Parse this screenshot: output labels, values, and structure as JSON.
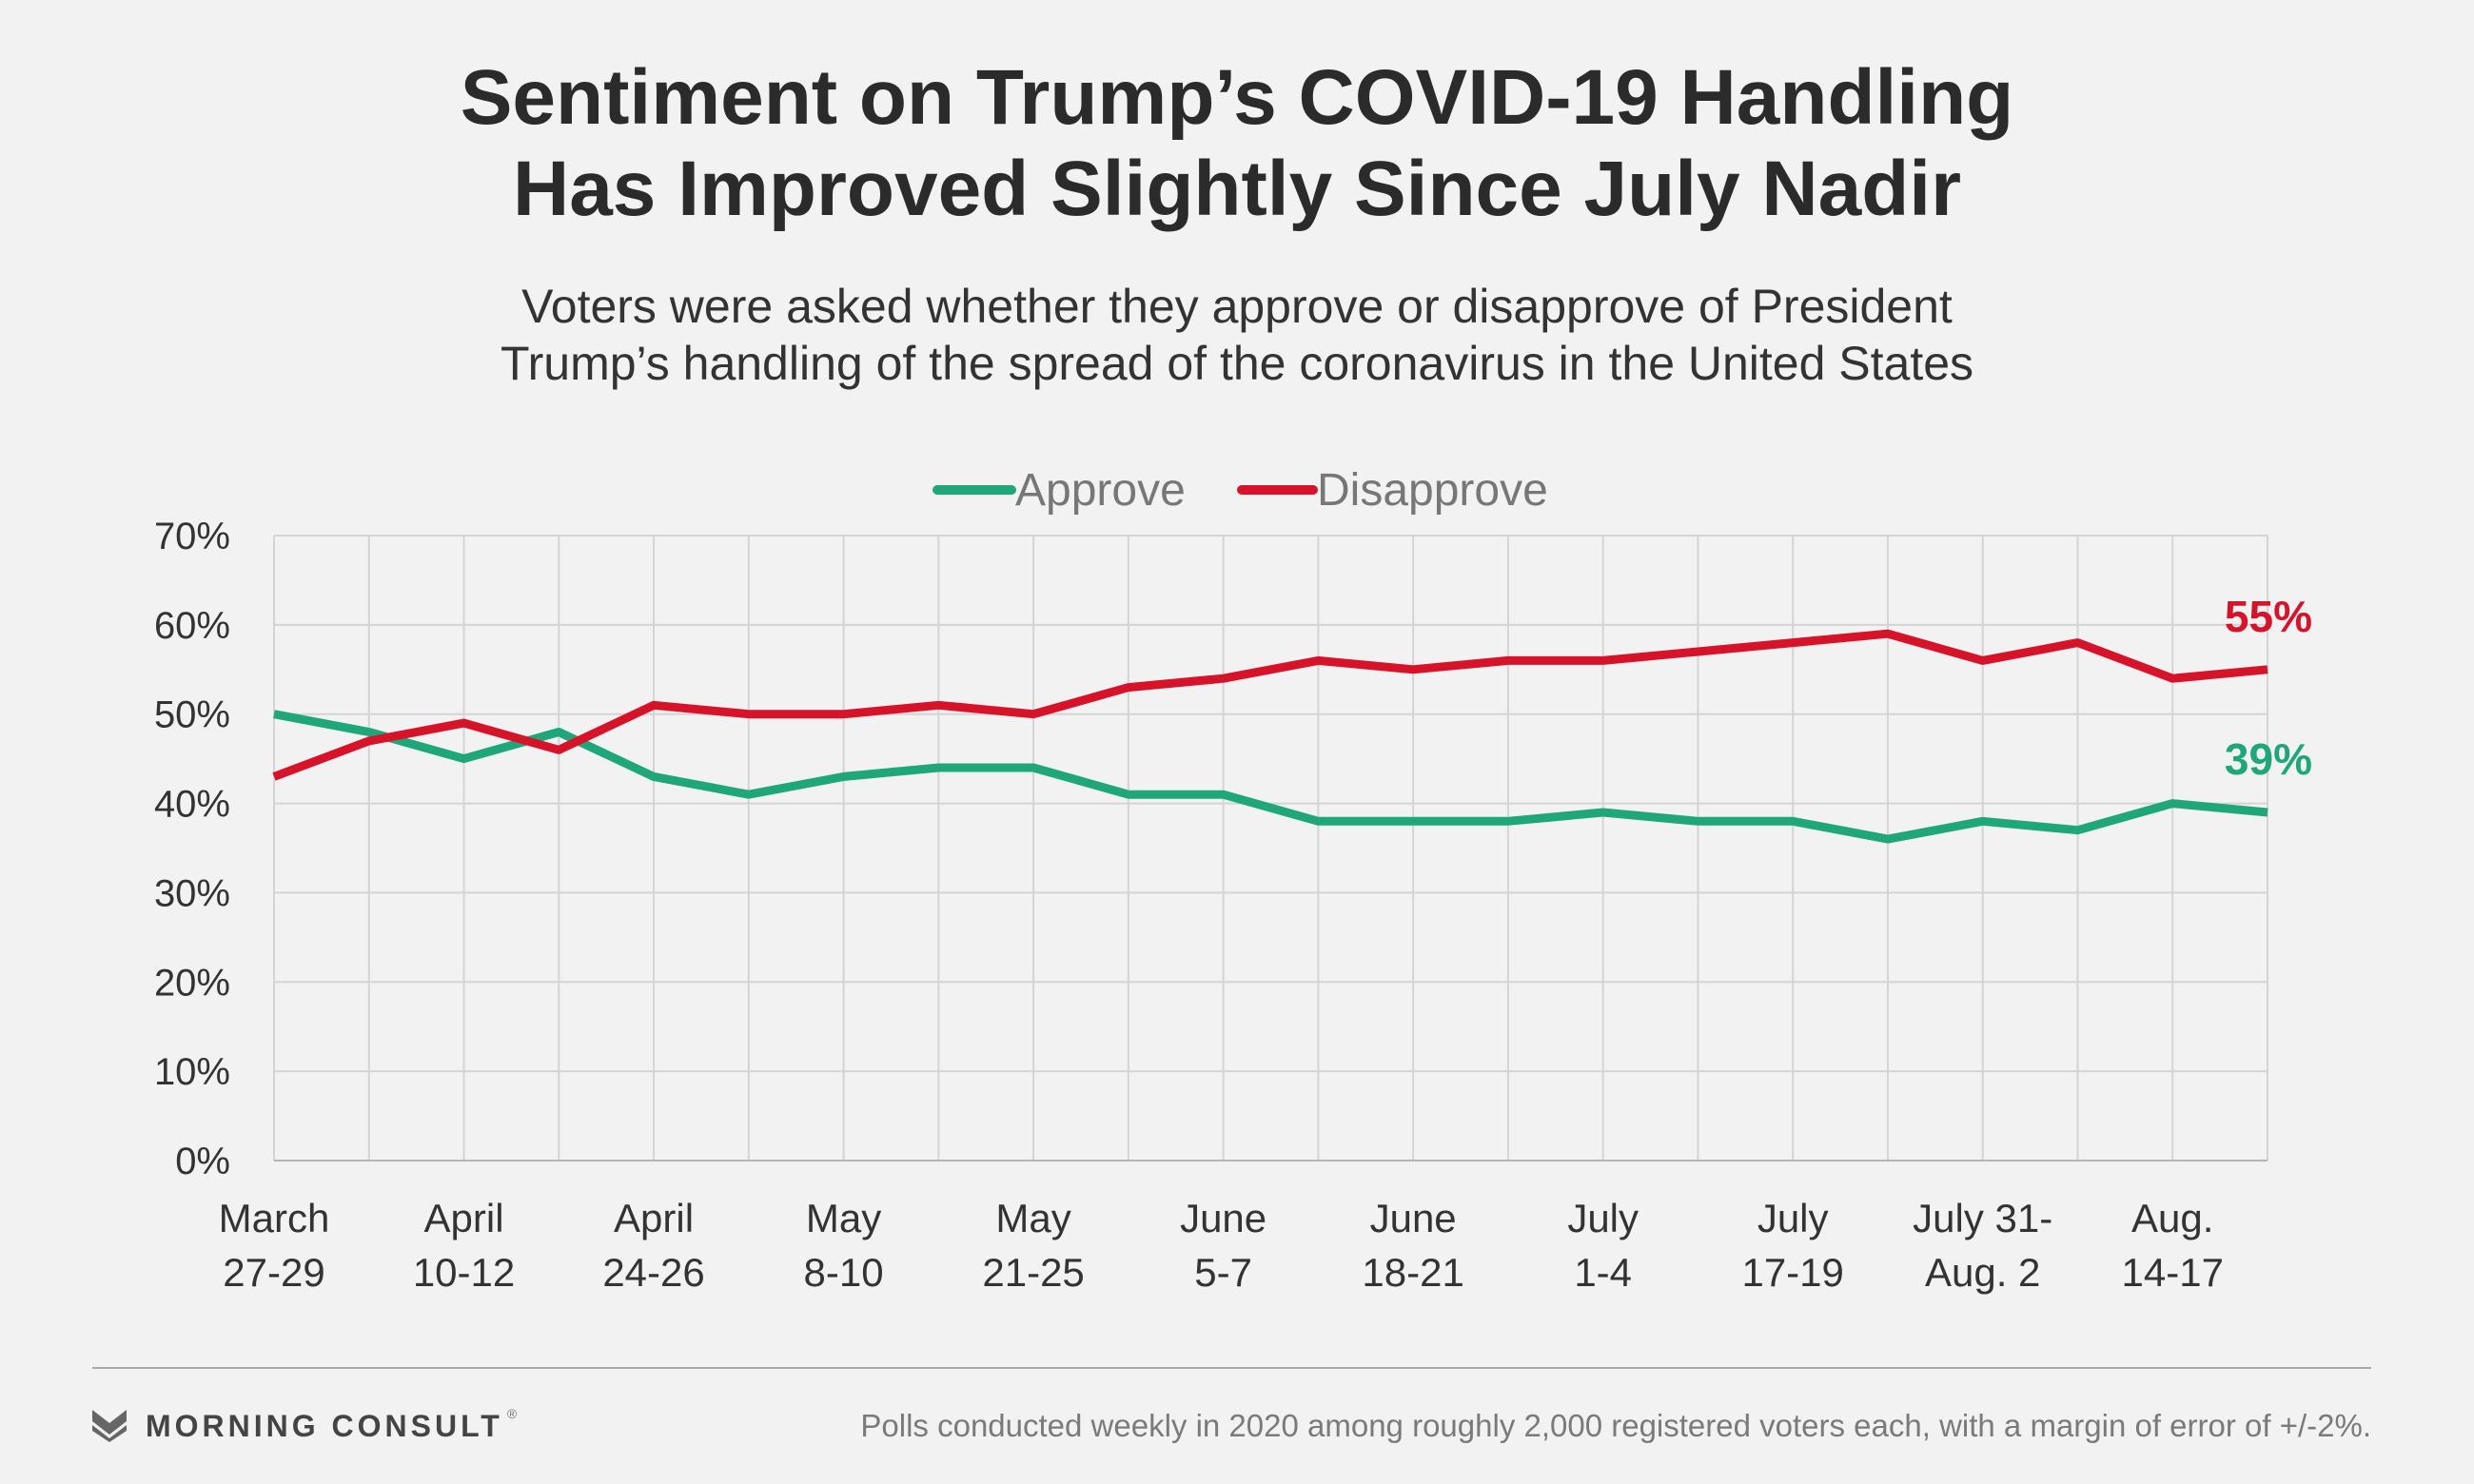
{
  "title": [
    "Sentiment on Trump’s COVID-19 Handling",
    "Has Improved Slightly Since July Nadir"
  ],
  "subtitle": [
    "Voters were asked whether they approve or disapprove of President",
    "Trump’s handling of the spread of the coronavirus in the United States"
  ],
  "footer": {
    "brand": "MORNING CONSULT",
    "trademark": "®",
    "note": "Polls conducted weekly in 2020 among roughly 2,000 registered voters each, with a margin of error of +/-2%."
  },
  "colors": {
    "approve": "#1fa67a",
    "disapprove": "#d7132a",
    "grid": "#d4d4d4",
    "axis_text": "#333333"
  },
  "chart_data": {
    "type": "line",
    "title": "Sentiment on Trump’s COVID-19 Handling Has Improved Slightly Since July Nadir",
    "xlabel": "",
    "ylabel": "",
    "ylim": [
      0,
      70
    ],
    "yticks": [
      "0%",
      "10%",
      "20%",
      "30%",
      "40%",
      "50%",
      "60%",
      "70%"
    ],
    "grid": true,
    "legend": "top-center",
    "x_tick_labels": [
      [
        "March",
        "27-29"
      ],
      [
        "April",
        "10-12"
      ],
      [
        "April",
        "24-26"
      ],
      [
        "May",
        "8-10"
      ],
      [
        "May",
        "21-25"
      ],
      [
        "June",
        "5-7"
      ],
      [
        "June",
        "18-21"
      ],
      [
        "July",
        "1-4"
      ],
      [
        "July",
        "17-19"
      ],
      [
        "July 31-",
        "Aug. 2"
      ],
      [
        "Aug.",
        "14-17"
      ]
    ],
    "n_points": 22,
    "series": [
      {
        "name": "Approve",
        "color": "#1fa67a",
        "values": [
          50,
          48,
          45,
          48,
          43,
          41,
          43,
          44,
          44,
          41,
          41,
          38,
          38,
          38,
          39,
          38,
          38,
          36,
          38,
          37,
          40,
          39
        ],
        "end_label": "39%"
      },
      {
        "name": "Disapprove",
        "color": "#d7132a",
        "values": [
          43,
          47,
          49,
          46,
          51,
          50,
          50,
          51,
          50,
          53,
          54,
          56,
          55,
          56,
          56,
          57,
          58,
          59,
          56,
          58,
          54,
          55
        ],
        "end_label": "55%"
      }
    ]
  }
}
